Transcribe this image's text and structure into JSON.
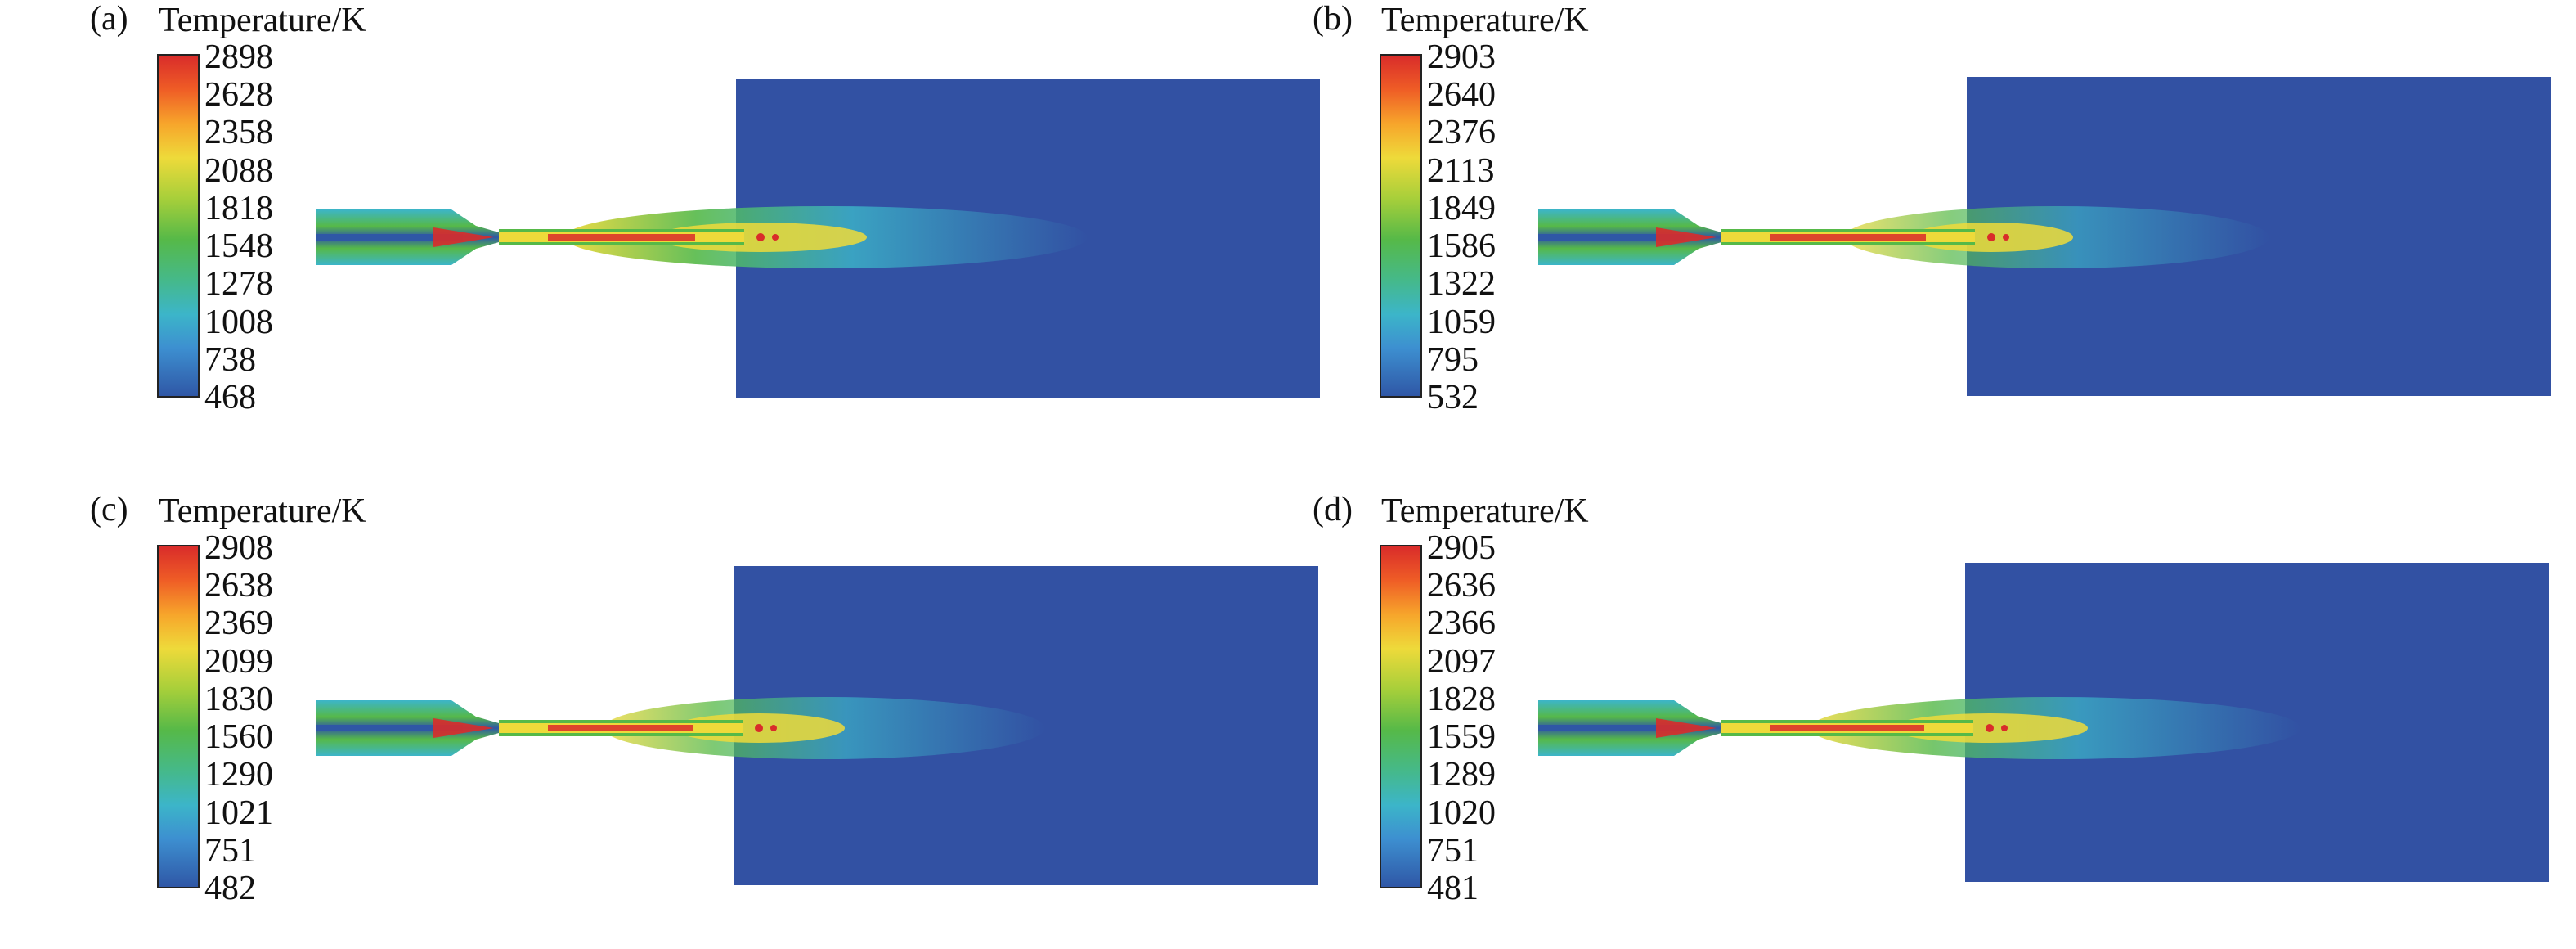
{
  "panels": [
    {
      "label": "(a)",
      "colorbar_title": "Temperature/K",
      "ticks": [
        "2898",
        "2628",
        "2358",
        "2088",
        "1818",
        "1548",
        "1278",
        "1008",
        "738",
        "468"
      ]
    },
    {
      "label": "(b)",
      "colorbar_title": "Temperature/K",
      "ticks": [
        "2903",
        "2640",
        "2376",
        "2113",
        "1849",
        "1586",
        "1322",
        "1059",
        "795",
        "532"
      ]
    },
    {
      "label": "(c)",
      "colorbar_title": "Temperature/K",
      "ticks": [
        "2908",
        "2638",
        "2369",
        "2099",
        "1830",
        "1560",
        "1290",
        "1021",
        "751",
        "482"
      ]
    },
    {
      "label": "(d)",
      "colorbar_title": "Temperature/K",
      "ticks": [
        "2905",
        "2636",
        "2366",
        "2097",
        "1828",
        "1559",
        "1289",
        "1020",
        "751",
        "481"
      ]
    }
  ],
  "colors": {
    "domain_background": "#3251a3",
    "hot": "#d92c2a",
    "warm": "#eeda3a",
    "mid": "#56b948",
    "cool": "#3cb5c9",
    "cold": "#2f57a6"
  }
}
